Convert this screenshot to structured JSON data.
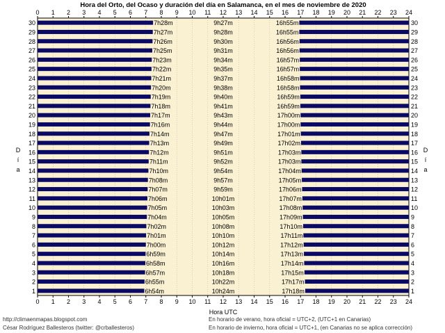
{
  "chart_data": {
    "type": "bar",
    "title": "Hora del Orto, del Ocaso y duración del día en Salamanca, en el mes de noviembre de 2020",
    "xlabel": "Hora UTC",
    "ylabel": "Día",
    "xlim": [
      0,
      24
    ],
    "x_ticks": [
      "0",
      "1",
      "2",
      "3",
      "4",
      "5",
      "6",
      "7",
      "8",
      "9",
      "10",
      "11",
      "12",
      "13",
      "14",
      "15",
      "16",
      "17",
      "18",
      "19",
      "20",
      "21",
      "22",
      "23",
      "24"
    ],
    "days": [
      1,
      2,
      3,
      4,
      5,
      6,
      7,
      8,
      9,
      10,
      11,
      12,
      13,
      14,
      15,
      16,
      17,
      18,
      19,
      20,
      21,
      22,
      23,
      24,
      25,
      26,
      27,
      28,
      29,
      30
    ],
    "sunrise_labels": [
      "6h54m",
      "6h55m",
      "6h57m",
      "6h58m",
      "6h59m",
      "7h00m",
      "7h01m",
      "7h02m",
      "7h04m",
      "7h05m",
      "7h06m",
      "7h07m",
      "7h08m",
      "7h10m",
      "7h11m",
      "7h12m",
      "7h13m",
      "7h14m",
      "7h16m",
      "7h17m",
      "7h18m",
      "7h19m",
      "7h20m",
      "7h21m",
      "7h22m",
      "7h23m",
      "7h25m",
      "7h26m",
      "7h27m",
      "7h28m"
    ],
    "sunset_labels": [
      "17h18m",
      "17h17m",
      "17h15m",
      "17h14m",
      "17h13m",
      "17h12m",
      "17h11m",
      "17h10m",
      "17h09m",
      "17h08m",
      "17h07m",
      "17h06m",
      "17h05m",
      "17h04m",
      "17h03m",
      "17h03m",
      "17h02m",
      "17h01m",
      "17h00m",
      "17h00m",
      "16h59m",
      "16h59m",
      "16h58m",
      "16h58m",
      "16h57m",
      "16h57m",
      "16h56m",
      "16h56m",
      "16h55m",
      "16h55m"
    ],
    "daylength_labels": [
      "10h24m",
      "10h22m",
      "10h18m",
      "10h16m",
      "10h14m",
      "10h12m",
      "10h10m",
      "10h08m",
      "10h05m",
      "10h03m",
      "10h01m",
      "9h59m",
      "9h57m",
      "9h54m",
      "9h52m",
      "9h51m",
      "9h49m",
      "9h47m",
      "9h44m",
      "9h43m",
      "9h41m",
      "9h40m",
      "9h38m",
      "9h37m",
      "9h35m",
      "9h34m",
      "9h31m",
      "9h30m",
      "9h28m",
      "9h27m"
    ],
    "colors": {
      "night": "#0a0a64",
      "day": "#faf0d2",
      "background": "#ffffff",
      "grid": "#c0b8a0"
    }
  },
  "footer": {
    "blog_url": "http://climaenmapas.blogspot.com",
    "author": "César Rodríguez Ballesteros (twitter: @crballesteros)",
    "note_summer": "En horario de verano, hora oficial = UTC+2, (UTC+1 en Canarias)",
    "note_winter": "En horario de invierno, hora oficial = UTC+1, (en Canarias no se aplica corrección)"
  }
}
